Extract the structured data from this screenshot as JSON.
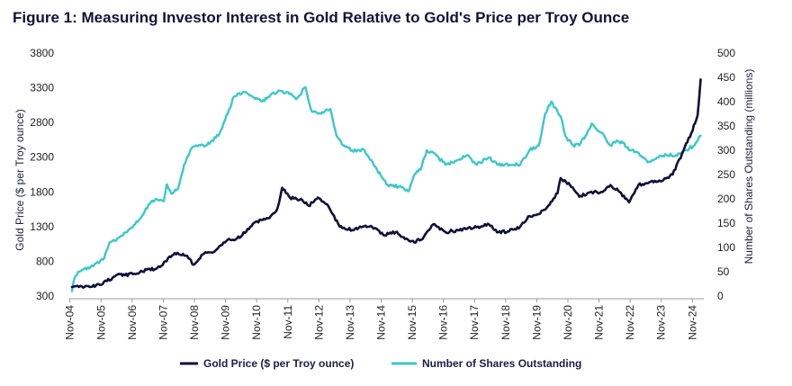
{
  "colors": {
    "gold": "#0f1038",
    "shares": "#3cc7c9",
    "title": "#0f1436",
    "text": "#222222"
  },
  "chart_data": {
    "type": "line",
    "title": "Figure 1: Measuring Investor Interest in Gold Relative to Gold's Price per Troy Ounce",
    "ylabel_left": "Gold Price ($ per Troy ounce)",
    "ylabel_right": "Number of Shares Outstanding (millions)",
    "y_left_range": [
      300,
      3800
    ],
    "y_left_ticks": [
      "300",
      "800",
      "1300",
      "1800",
      "2300",
      "2800",
      "3300",
      "3800"
    ],
    "y_right_range": [
      0,
      500
    ],
    "y_right_ticks": [
      "0",
      "50",
      "100",
      "150",
      "200",
      "250",
      "300",
      "350",
      "400",
      "450",
      "500"
    ],
    "x_range": [
      2004.9,
      2025.2
    ],
    "x_ticks": [
      {
        "label": "Nov-04",
        "x": 2004.833
      },
      {
        "label": "Nov-05",
        "x": 2005.833
      },
      {
        "label": "Nov-06",
        "x": 2006.833
      },
      {
        "label": "Nov-07",
        "x": 2007.833
      },
      {
        "label": "Nov-08",
        "x": 2008.833
      },
      {
        "label": "Nov-09",
        "x": 2009.833
      },
      {
        "label": "Nov-10",
        "x": 2010.833
      },
      {
        "label": "Nov-11",
        "x": 2011.833
      },
      {
        "label": "Nov-12",
        "x": 2012.833
      },
      {
        "label": "Nov-13",
        "x": 2013.833
      },
      {
        "label": "Nov-14",
        "x": 2014.833
      },
      {
        "label": "Nov-15",
        "x": 2015.833
      },
      {
        "label": "Nov-16",
        "x": 2016.833
      },
      {
        "label": "Nov-17",
        "x": 2017.833
      },
      {
        "label": "Nov-18",
        "x": 2018.833
      },
      {
        "label": "Nov-19",
        "x": 2019.833
      },
      {
        "label": "Nov-20",
        "x": 2020.833
      },
      {
        "label": "Nov-21",
        "x": 2021.833
      },
      {
        "label": "Nov-22",
        "x": 2022.833
      },
      {
        "label": "Nov-23",
        "x": 2023.833
      },
      {
        "label": "Nov-24",
        "x": 2024.833
      }
    ],
    "legend_position": "bottom-center",
    "grid": false,
    "series": [
      {
        "name": "Gold Price ($ per Troy ounce)",
        "axis": "left",
        "x": [
          2004.9,
          2005.3,
          2005.8,
          2006.2,
          2006.4,
          2006.6,
          2006.9,
          2007.3,
          2007.6,
          2007.9,
          2008.2,
          2008.6,
          2008.8,
          2009.1,
          2009.5,
          2009.9,
          2010.2,
          2010.5,
          2010.8,
          2011.2,
          2011.5,
          2011.65,
          2011.9,
          2012.3,
          2012.5,
          2012.8,
          2013.1,
          2013.5,
          2013.9,
          2014.2,
          2014.5,
          2014.9,
          2015.3,
          2015.6,
          2015.9,
          2016.2,
          2016.5,
          2016.9,
          2017.3,
          2017.6,
          2017.9,
          2018.3,
          2018.6,
          2018.9,
          2019.3,
          2019.6,
          2019.9,
          2020.2,
          2020.5,
          2020.6,
          2020.9,
          2021.2,
          2021.5,
          2021.9,
          2022.2,
          2022.5,
          2022.8,
          2023.1,
          2023.5,
          2023.9,
          2024.2,
          2024.5,
          2024.8,
          2025.0,
          2025.1
        ],
        "values": [
          430,
          430,
          460,
          560,
          620,
          600,
          620,
          680,
          690,
          800,
          920,
          880,
          750,
          900,
          950,
          1110,
          1130,
          1230,
          1370,
          1420,
          1560,
          1860,
          1720,
          1680,
          1600,
          1720,
          1620,
          1300,
          1250,
          1290,
          1310,
          1180,
          1220,
          1120,
          1070,
          1150,
          1330,
          1220,
          1250,
          1270,
          1290,
          1330,
          1220,
          1230,
          1300,
          1450,
          1480,
          1600,
          1780,
          2000,
          1900,
          1730,
          1790,
          1800,
          1900,
          1800,
          1650,
          1900,
          1950,
          1970,
          2050,
          2350,
          2650,
          2900,
          3420
        ]
      },
      {
        "name": "Number of Shares Outstanding",
        "axis": "right",
        "x": [
          2004.9,
          2004.95,
          2005.1,
          2005.5,
          2005.9,
          2006.1,
          2006.4,
          2006.8,
          2007.1,
          2007.4,
          2007.6,
          2007.85,
          2007.95,
          2008.1,
          2008.3,
          2008.5,
          2008.7,
          2008.9,
          2009.2,
          2009.4,
          2009.6,
          2009.9,
          2010.1,
          2010.4,
          2010.7,
          2011.0,
          2011.2,
          2011.5,
          2011.8,
          2012.1,
          2012.4,
          2012.6,
          2012.9,
          2013.2,
          2013.4,
          2013.6,
          2013.9,
          2014.3,
          2014.7,
          2015.0,
          2015.4,
          2015.7,
          2015.9,
          2016.1,
          2016.3,
          2016.6,
          2016.9,
          2017.3,
          2017.6,
          2017.9,
          2018.3,
          2018.6,
          2018.8,
          2019.0,
          2019.3,
          2019.6,
          2019.9,
          2020.1,
          2020.3,
          2020.6,
          2020.75,
          2021.0,
          2021.2,
          2021.4,
          2021.6,
          2021.8,
          2022.0,
          2022.2,
          2022.4,
          2022.6,
          2022.8,
          2023.1,
          2023.4,
          2023.7,
          2024.0,
          2024.3,
          2024.6,
          2024.9,
          2025.0,
          2025.1
        ],
        "values": [
          10,
          30,
          50,
          60,
          75,
          110,
          120,
          140,
          160,
          190,
          200,
          195,
          230,
          210,
          220,
          270,
          300,
          310,
          310,
          320,
          330,
          375,
          410,
          420,
          410,
          400,
          410,
          420,
          420,
          405,
          430,
          380,
          375,
          385,
          330,
          310,
          300,
          300,
          260,
          230,
          225,
          215,
          250,
          260,
          300,
          290,
          270,
          280,
          290,
          270,
          285,
          270,
          270,
          270,
          270,
          300,
          310,
          375,
          400,
          370,
          330,
          310,
          310,
          330,
          355,
          340,
          330,
          310,
          320,
          315,
          300,
          295,
          275,
          285,
          290,
          290,
          300,
          310,
          320,
          330
        ]
      }
    ]
  },
  "legend": {
    "gold_label": "Gold Price ($ per Troy ounce)",
    "shares_label": "Number of Shares Outstanding"
  }
}
